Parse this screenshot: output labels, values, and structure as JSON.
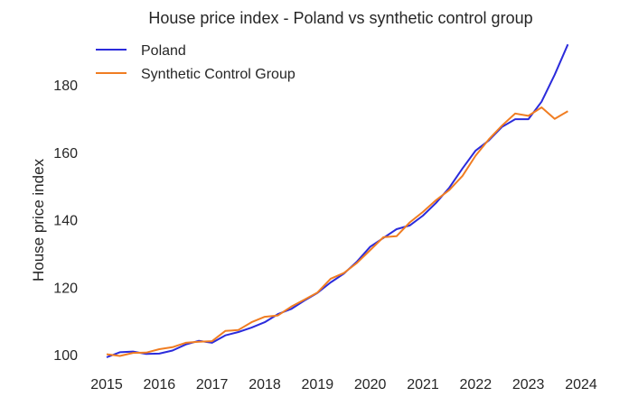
{
  "chart_data": {
    "type": "line",
    "title": "House price index - Poland vs synthetic control group",
    "xlabel": "",
    "ylabel": "House price index",
    "xlim": [
      2015,
      2024
    ],
    "ylim": [
      100,
      180
    ],
    "x_ticks": [
      "2015",
      "2016",
      "2017",
      "2018",
      "2019",
      "2020",
      "2021",
      "2022",
      "2023",
      "2024"
    ],
    "y_ticks": [
      "100",
      "120",
      "140",
      "160",
      "180"
    ],
    "grid": false,
    "legend_position": "top-left",
    "x": [
      2015.0,
      2015.25,
      2015.5,
      2015.75,
      2016.0,
      2016.25,
      2016.5,
      2016.75,
      2017.0,
      2017.25,
      2017.5,
      2017.75,
      2018.0,
      2018.25,
      2018.5,
      2018.75,
      2019.0,
      2019.25,
      2019.5,
      2019.75,
      2020.0,
      2020.25,
      2020.5,
      2020.75,
      2021.0,
      2021.25,
      2021.5,
      2021.75,
      2022.0,
      2022.25,
      2022.5,
      2022.75,
      2023.0,
      2023.25,
      2023.5,
      2023.75
    ],
    "series": [
      {
        "name": "Poland",
        "color": "#2b2bdb",
        "values": [
          99.2,
          100.7,
          100.9,
          100.2,
          100.3,
          101.2,
          103.0,
          104.1,
          103.5,
          105.7,
          106.7,
          108.0,
          109.6,
          112.0,
          113.5,
          116.0,
          118.3,
          121.4,
          124.0,
          127.6,
          132.0,
          134.6,
          137.2,
          138.3,
          141.2,
          145.0,
          149.5,
          155.2,
          160.5,
          163.5,
          167.5,
          169.8,
          169.8,
          175.0,
          183.0,
          192.0
        ]
      },
      {
        "name": "Synthetic Control Group",
        "color": "#f07d22",
        "values": [
          100.1,
          99.6,
          100.5,
          100.6,
          101.6,
          102.2,
          103.5,
          103.8,
          104.0,
          107.0,
          107.3,
          109.6,
          111.2,
          111.6,
          114.2,
          116.3,
          118.4,
          122.5,
          124.2,
          127.2,
          131.0,
          134.8,
          135.1,
          139.2,
          142.3,
          145.8,
          148.8,
          153.0,
          159.0,
          163.8,
          167.9,
          171.5,
          170.8,
          173.3,
          169.9,
          172.2
        ]
      }
    ]
  }
}
